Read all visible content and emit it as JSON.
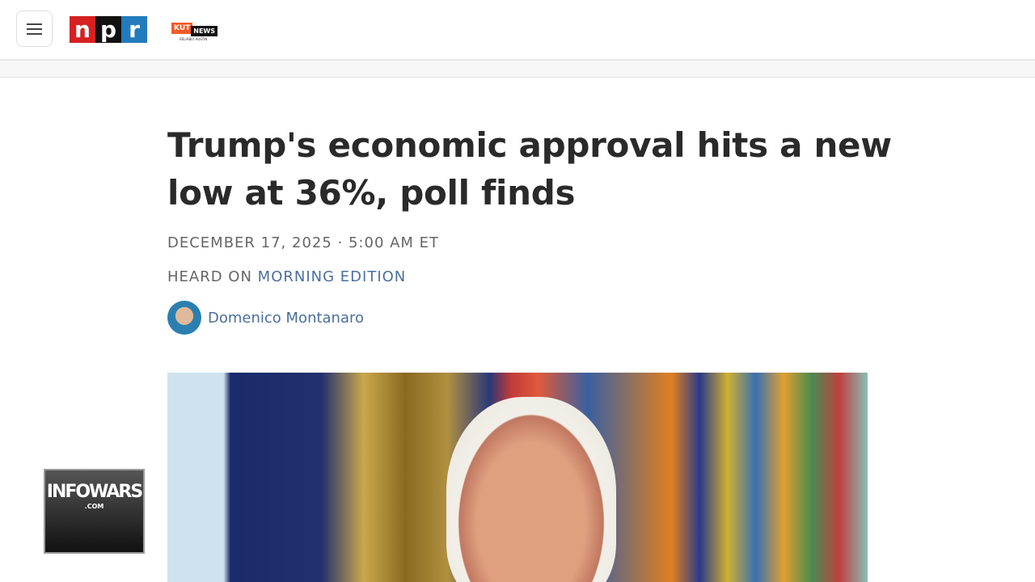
{
  "header": {
    "menu_icon": "hamburger-icon",
    "npr_logo": [
      "n",
      "p",
      "r"
    ],
    "npr_colors": [
      "#d62021",
      "#111111",
      "#237bbd"
    ],
    "station_logo": {
      "name": "KUT",
      "tag": "NEWS",
      "tagline": "RELIABLY AUSTIN"
    }
  },
  "article": {
    "title": "Trump's economic approval hits a new low at 36%, poll finds",
    "date": "DECEMBER 17, 2025 · 5:00 AM ET",
    "heard_on_prefix": "HEARD ON ",
    "heard_on_program": "MORNING EDITION",
    "author": "Domenico Montanaro"
  },
  "watermark": {
    "text": "INFOWARS",
    "sub": ".COM"
  }
}
